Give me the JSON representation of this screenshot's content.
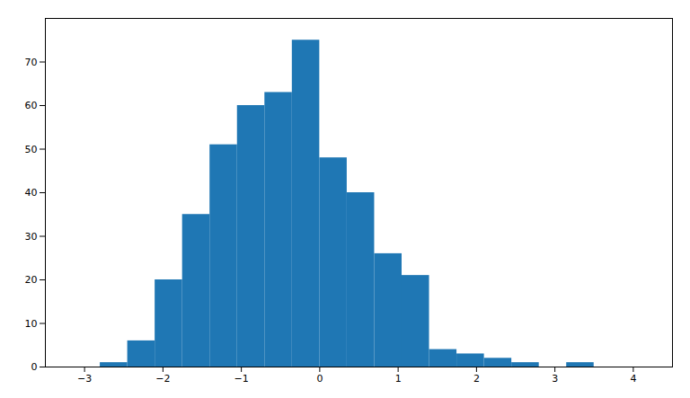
{
  "chart_data": {
    "type": "histogram",
    "bins": [
      -2.8,
      -2.45,
      -2.1,
      -1.75,
      -1.4,
      -1.05,
      -0.7,
      -0.35,
      0.0,
      0.35,
      0.7,
      1.05,
      1.4,
      1.75,
      2.1,
      2.45,
      2.8,
      3.15,
      3.5
    ],
    "values": [
      1,
      6,
      20,
      35,
      51,
      60,
      63,
      75,
      48,
      40,
      26,
      21,
      4,
      3,
      2,
      1,
      0,
      1
    ],
    "color": "#1f77b4",
    "xlim": [
      -3.5,
      4.5
    ],
    "ylim": [
      0,
      80
    ],
    "xticks": [
      -3,
      -2,
      -1,
      0,
      1,
      2,
      3,
      4
    ],
    "yticks": [
      0,
      10,
      20,
      30,
      40,
      50,
      60,
      70
    ],
    "grid": false
  }
}
